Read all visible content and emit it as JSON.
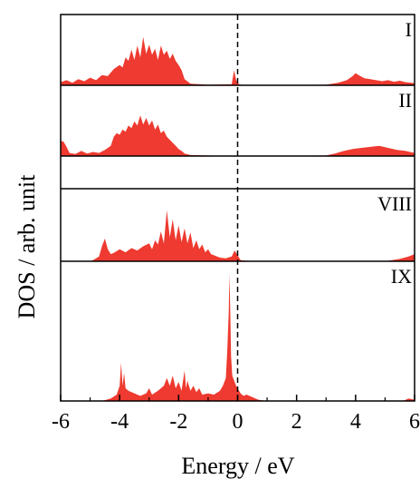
{
  "chart_data": {
    "type": "area",
    "xlabel": "Energy / eV",
    "ylabel": "DOS / arb. unit",
    "xlim": [
      -6,
      6
    ],
    "xticks": [
      -6,
      -4,
      -2,
      0,
      2,
      4,
      6
    ],
    "xtick_labels": [
      "-6",
      "-4",
      "-2",
      "0",
      "2",
      "4",
      "6"
    ],
    "fermi_level": 0,
    "fill_color": "#ee3a30",
    "panels": [
      {
        "label": "I",
        "ylim": [
          0,
          1
        ],
        "x": [
          -6,
          -5.8,
          -5.6,
          -5.4,
          -5.2,
          -5.0,
          -4.8,
          -4.6,
          -4.4,
          -4.2,
          -4.0,
          -3.9,
          -3.8,
          -3.7,
          -3.6,
          -3.5,
          -3.4,
          -3.3,
          -3.2,
          -3.1,
          -3.0,
          -2.9,
          -2.8,
          -2.7,
          -2.6,
          -2.5,
          -2.4,
          -2.3,
          -2.2,
          -2.1,
          -2.0,
          -1.9,
          -1.8,
          -1.6,
          -1.0,
          -0.2,
          -0.12,
          -0.05,
          0.05,
          0.2,
          1.0,
          3.0,
          3.4,
          3.7,
          3.9,
          4.0,
          4.1,
          4.3,
          4.5,
          4.7,
          4.9,
          5.1,
          5.3,
          5.5,
          5.7,
          5.9,
          6.0
        ],
        "y": [
          0.06,
          0.1,
          0.05,
          0.12,
          0.08,
          0.15,
          0.1,
          0.2,
          0.18,
          0.32,
          0.4,
          0.35,
          0.55,
          0.48,
          0.7,
          0.5,
          0.78,
          0.55,
          0.95,
          0.62,
          0.8,
          0.6,
          0.72,
          0.5,
          0.78,
          0.6,
          0.68,
          0.52,
          0.62,
          0.48,
          0.4,
          0.3,
          0.12,
          0.03,
          0.01,
          0.02,
          0.3,
          0.1,
          0.02,
          0.0,
          0.0,
          0.01,
          0.05,
          0.1,
          0.18,
          0.24,
          0.2,
          0.14,
          0.12,
          0.1,
          0.08,
          0.1,
          0.07,
          0.09,
          0.06,
          0.05,
          0.04
        ]
      },
      {
        "label": "II",
        "ylim": [
          0,
          1
        ],
        "x": [
          -6,
          -5.9,
          -5.8,
          -5.7,
          -5.5,
          -5.3,
          -5.1,
          -4.9,
          -4.7,
          -4.5,
          -4.3,
          -4.2,
          -4.1,
          -4.0,
          -3.9,
          -3.8,
          -3.7,
          -3.6,
          -3.5,
          -3.4,
          -3.3,
          -3.2,
          -3.1,
          -3.0,
          -2.9,
          -2.8,
          -2.7,
          -2.6,
          -2.5,
          -2.4,
          -2.3,
          -2.2,
          -2.1,
          -2.0,
          -1.9,
          -1.8,
          -1.6,
          -1.0,
          0.0,
          1.0,
          3.0,
          3.3,
          3.6,
          3.9,
          4.2,
          4.5,
          4.8,
          5.1,
          5.4,
          5.7,
          6.0
        ],
        "y": [
          0.3,
          0.28,
          0.18,
          0.06,
          0.04,
          0.1,
          0.05,
          0.08,
          0.06,
          0.12,
          0.2,
          0.38,
          0.45,
          0.42,
          0.52,
          0.48,
          0.6,
          0.55,
          0.68,
          0.6,
          0.8,
          0.62,
          0.75,
          0.6,
          0.7,
          0.52,
          0.62,
          0.45,
          0.5,
          0.38,
          0.32,
          0.26,
          0.2,
          0.14,
          0.1,
          0.05,
          0.02,
          0.01,
          0.0,
          0.0,
          0.01,
          0.05,
          0.1,
          0.14,
          0.16,
          0.18,
          0.2,
          0.16,
          0.12,
          0.1,
          0.06
        ]
      },
      {
        "label": "",
        "ylim": [
          0,
          1
        ],
        "x": [
          -6,
          6
        ],
        "y": [
          0,
          0
        ]
      },
      {
        "label": "VIII",
        "ylim": [
          0,
          1
        ],
        "x": [
          -6,
          -5.0,
          -4.9,
          -4.7,
          -4.6,
          -4.5,
          -4.4,
          -4.3,
          -4.2,
          -4.0,
          -3.8,
          -3.6,
          -3.4,
          -3.2,
          -3.0,
          -2.9,
          -2.8,
          -2.7,
          -2.6,
          -2.5,
          -2.4,
          -2.3,
          -2.2,
          -2.1,
          -2.0,
          -1.9,
          -1.8,
          -1.7,
          -1.6,
          -1.5,
          -1.4,
          -1.3,
          -1.2,
          -1.1,
          -1.0,
          -0.9,
          -0.8,
          -0.6,
          -0.4,
          -0.2,
          -0.1,
          0.0,
          0.1,
          0.5,
          3.0,
          5.0,
          5.5,
          5.8,
          6.0
        ],
        "y": [
          0.0,
          0.0,
          0.02,
          0.08,
          0.25,
          0.38,
          0.2,
          0.12,
          0.14,
          0.2,
          0.15,
          0.22,
          0.18,
          0.25,
          0.3,
          0.2,
          0.35,
          0.28,
          0.5,
          0.3,
          0.85,
          0.4,
          0.7,
          0.35,
          0.6,
          0.32,
          0.55,
          0.3,
          0.48,
          0.22,
          0.35,
          0.2,
          0.28,
          0.15,
          0.2,
          0.12,
          0.1,
          0.06,
          0.05,
          0.08,
          0.18,
          0.1,
          0.02,
          0.0,
          0.0,
          0.0,
          0.04,
          0.08,
          0.12
        ]
      },
      {
        "label": "IX",
        "ylim": [
          0,
          1
        ],
        "x": [
          -6,
          -4.6,
          -4.3,
          -4.1,
          -4.0,
          -3.95,
          -3.9,
          -3.85,
          -3.8,
          -3.7,
          -3.5,
          -3.3,
          -3.1,
          -3.0,
          -2.9,
          -2.7,
          -2.5,
          -2.4,
          -2.3,
          -2.2,
          -2.1,
          -2.0,
          -1.9,
          -1.8,
          -1.75,
          -1.7,
          -1.6,
          -1.5,
          -1.4,
          -1.3,
          -1.2,
          -1.0,
          -0.8,
          -0.6,
          -0.5,
          -0.4,
          -0.35,
          -0.3,
          -0.28,
          -0.25,
          -0.22,
          -0.18,
          -0.1,
          -0.05,
          0.0,
          0.1,
          0.2,
          0.3,
          0.5,
          0.7,
          1.0,
          3.0,
          5.6,
          5.8,
          6.0
        ],
        "y": [
          0.0,
          0.0,
          0.02,
          0.05,
          0.12,
          0.3,
          0.12,
          0.22,
          0.1,
          0.08,
          0.06,
          0.04,
          0.06,
          0.1,
          0.05,
          0.08,
          0.12,
          0.18,
          0.12,
          0.2,
          0.1,
          0.15,
          0.08,
          0.24,
          0.1,
          0.16,
          0.08,
          0.12,
          0.07,
          0.1,
          0.05,
          0.06,
          0.05,
          0.08,
          0.12,
          0.18,
          0.4,
          0.7,
          1.0,
          0.7,
          0.35,
          0.2,
          0.15,
          0.12,
          0.1,
          0.06,
          0.04,
          0.05,
          0.03,
          0.01,
          0.0,
          0.0,
          0.0,
          0.02,
          0.01
        ]
      }
    ]
  }
}
